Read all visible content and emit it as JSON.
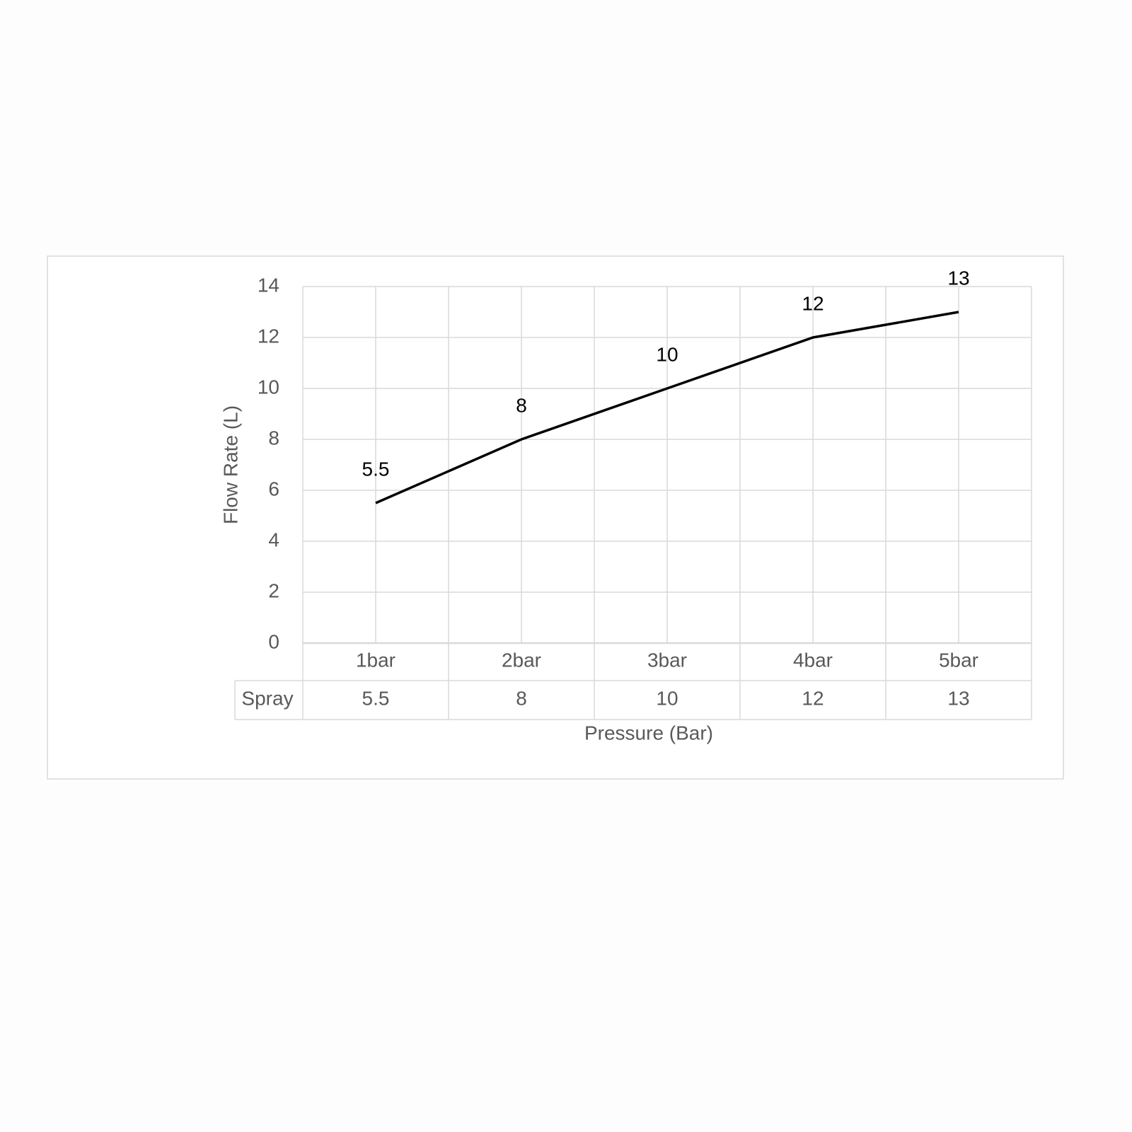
{
  "chart_data": {
    "type": "line",
    "x_label": "Pressure (Bar)",
    "y_label": "Flow Rate (L)",
    "categories": [
      "1bar",
      "2bar",
      "3bar",
      "4bar",
      "5bar"
    ],
    "series": [
      {
        "name": "Spray",
        "color": "#000000",
        "values": [
          5.5,
          8,
          10,
          12,
          13
        ]
      }
    ],
    "ylim": [
      0,
      14
    ],
    "yticks": [
      0,
      2,
      4,
      6,
      8,
      10,
      12,
      14
    ],
    "grid": true,
    "data_table": true
  }
}
